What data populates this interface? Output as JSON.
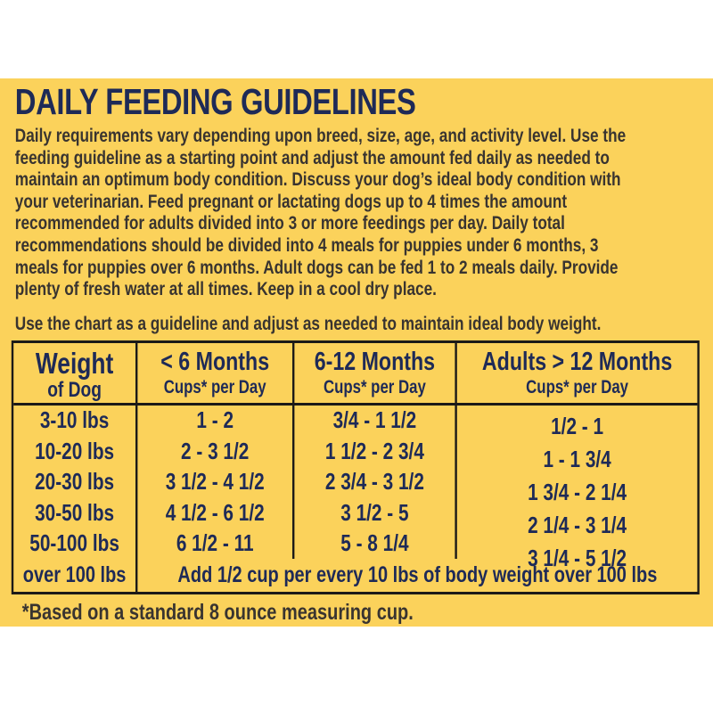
{
  "label": {
    "title": "DAILY FEEDING GUIDELINES",
    "intro": "Daily requirements vary depending upon breed, size, age, and activity level. Use the\nfeeding guideline as a starting point and adjust the amount fed daily as needed to\nmaintain an optimum body condition. Discuss your dog’s ideal body condition with\nyour veterinarian. Feed pregnant or lactating dogs up to 4 times the amount\nrecommended for adults divided into 3 or more feedings per day. Daily total\nrecommendations should be divided into 4 meals for puppies under 6 months, 3\nmeals for puppies over 6 months. Adult dogs can be fed 1 to 2 meals daily. Provide\nplenty of fresh water at all times. Keep in a cool dry place.",
    "chart_note": "Use the chart as a guideline and adjust as needed to maintain ideal body weight.",
    "footnote": "*Based on a standard 8 ounce measuring cup."
  },
  "table": {
    "headers": [
      {
        "title": "Weight",
        "subtitle": "of Dog"
      },
      {
        "title": "< 6 Months",
        "subtitle": "Cups* per Day"
      },
      {
        "title": "6-12 Months",
        "subtitle": "Cups* per Day"
      },
      {
        "title": "Adults > 12 Months",
        "subtitle": "Cups* per Day"
      }
    ],
    "rows": [
      {
        "weight": "3-10 lbs",
        "under_6_months": "1 - 2",
        "months_6_12": "3/4 - 1 1/2",
        "adults": "1/2 - 1"
      },
      {
        "weight": "10-20 lbs",
        "under_6_months": "2 - 3 1/2",
        "months_6_12": "1 1/2 - 2 3/4",
        "adults": "1 - 1 3/4"
      },
      {
        "weight": "20-30 lbs",
        "under_6_months": "3 1/2 - 4 1/2",
        "months_6_12": "2 3/4 - 3 1/2",
        "adults": "1 3/4 - 2 1/4"
      },
      {
        "weight": "30-50 lbs",
        "under_6_months": "4 1/2 - 6 1/2",
        "months_6_12": "3 1/2 - 5",
        "adults": "2 1/4 - 3 1/4"
      },
      {
        "weight": "50-100 lbs",
        "under_6_months": "6 1/2 - 11",
        "months_6_12": "5 - 8 1/4",
        "adults": "3 1/4 - 5 1/2"
      }
    ],
    "footer": {
      "weight": "over 100 lbs",
      "note": "Add 1/2 cup per every 10 lbs of body weight over 100 lbs"
    }
  },
  "colors": {
    "label_yellow": "#fbd25b",
    "heading_navy": "#1e2a57",
    "body_text_dark": "#393430",
    "table_border": "#1b1a18",
    "page_margin_white": "#ffffff"
  }
}
